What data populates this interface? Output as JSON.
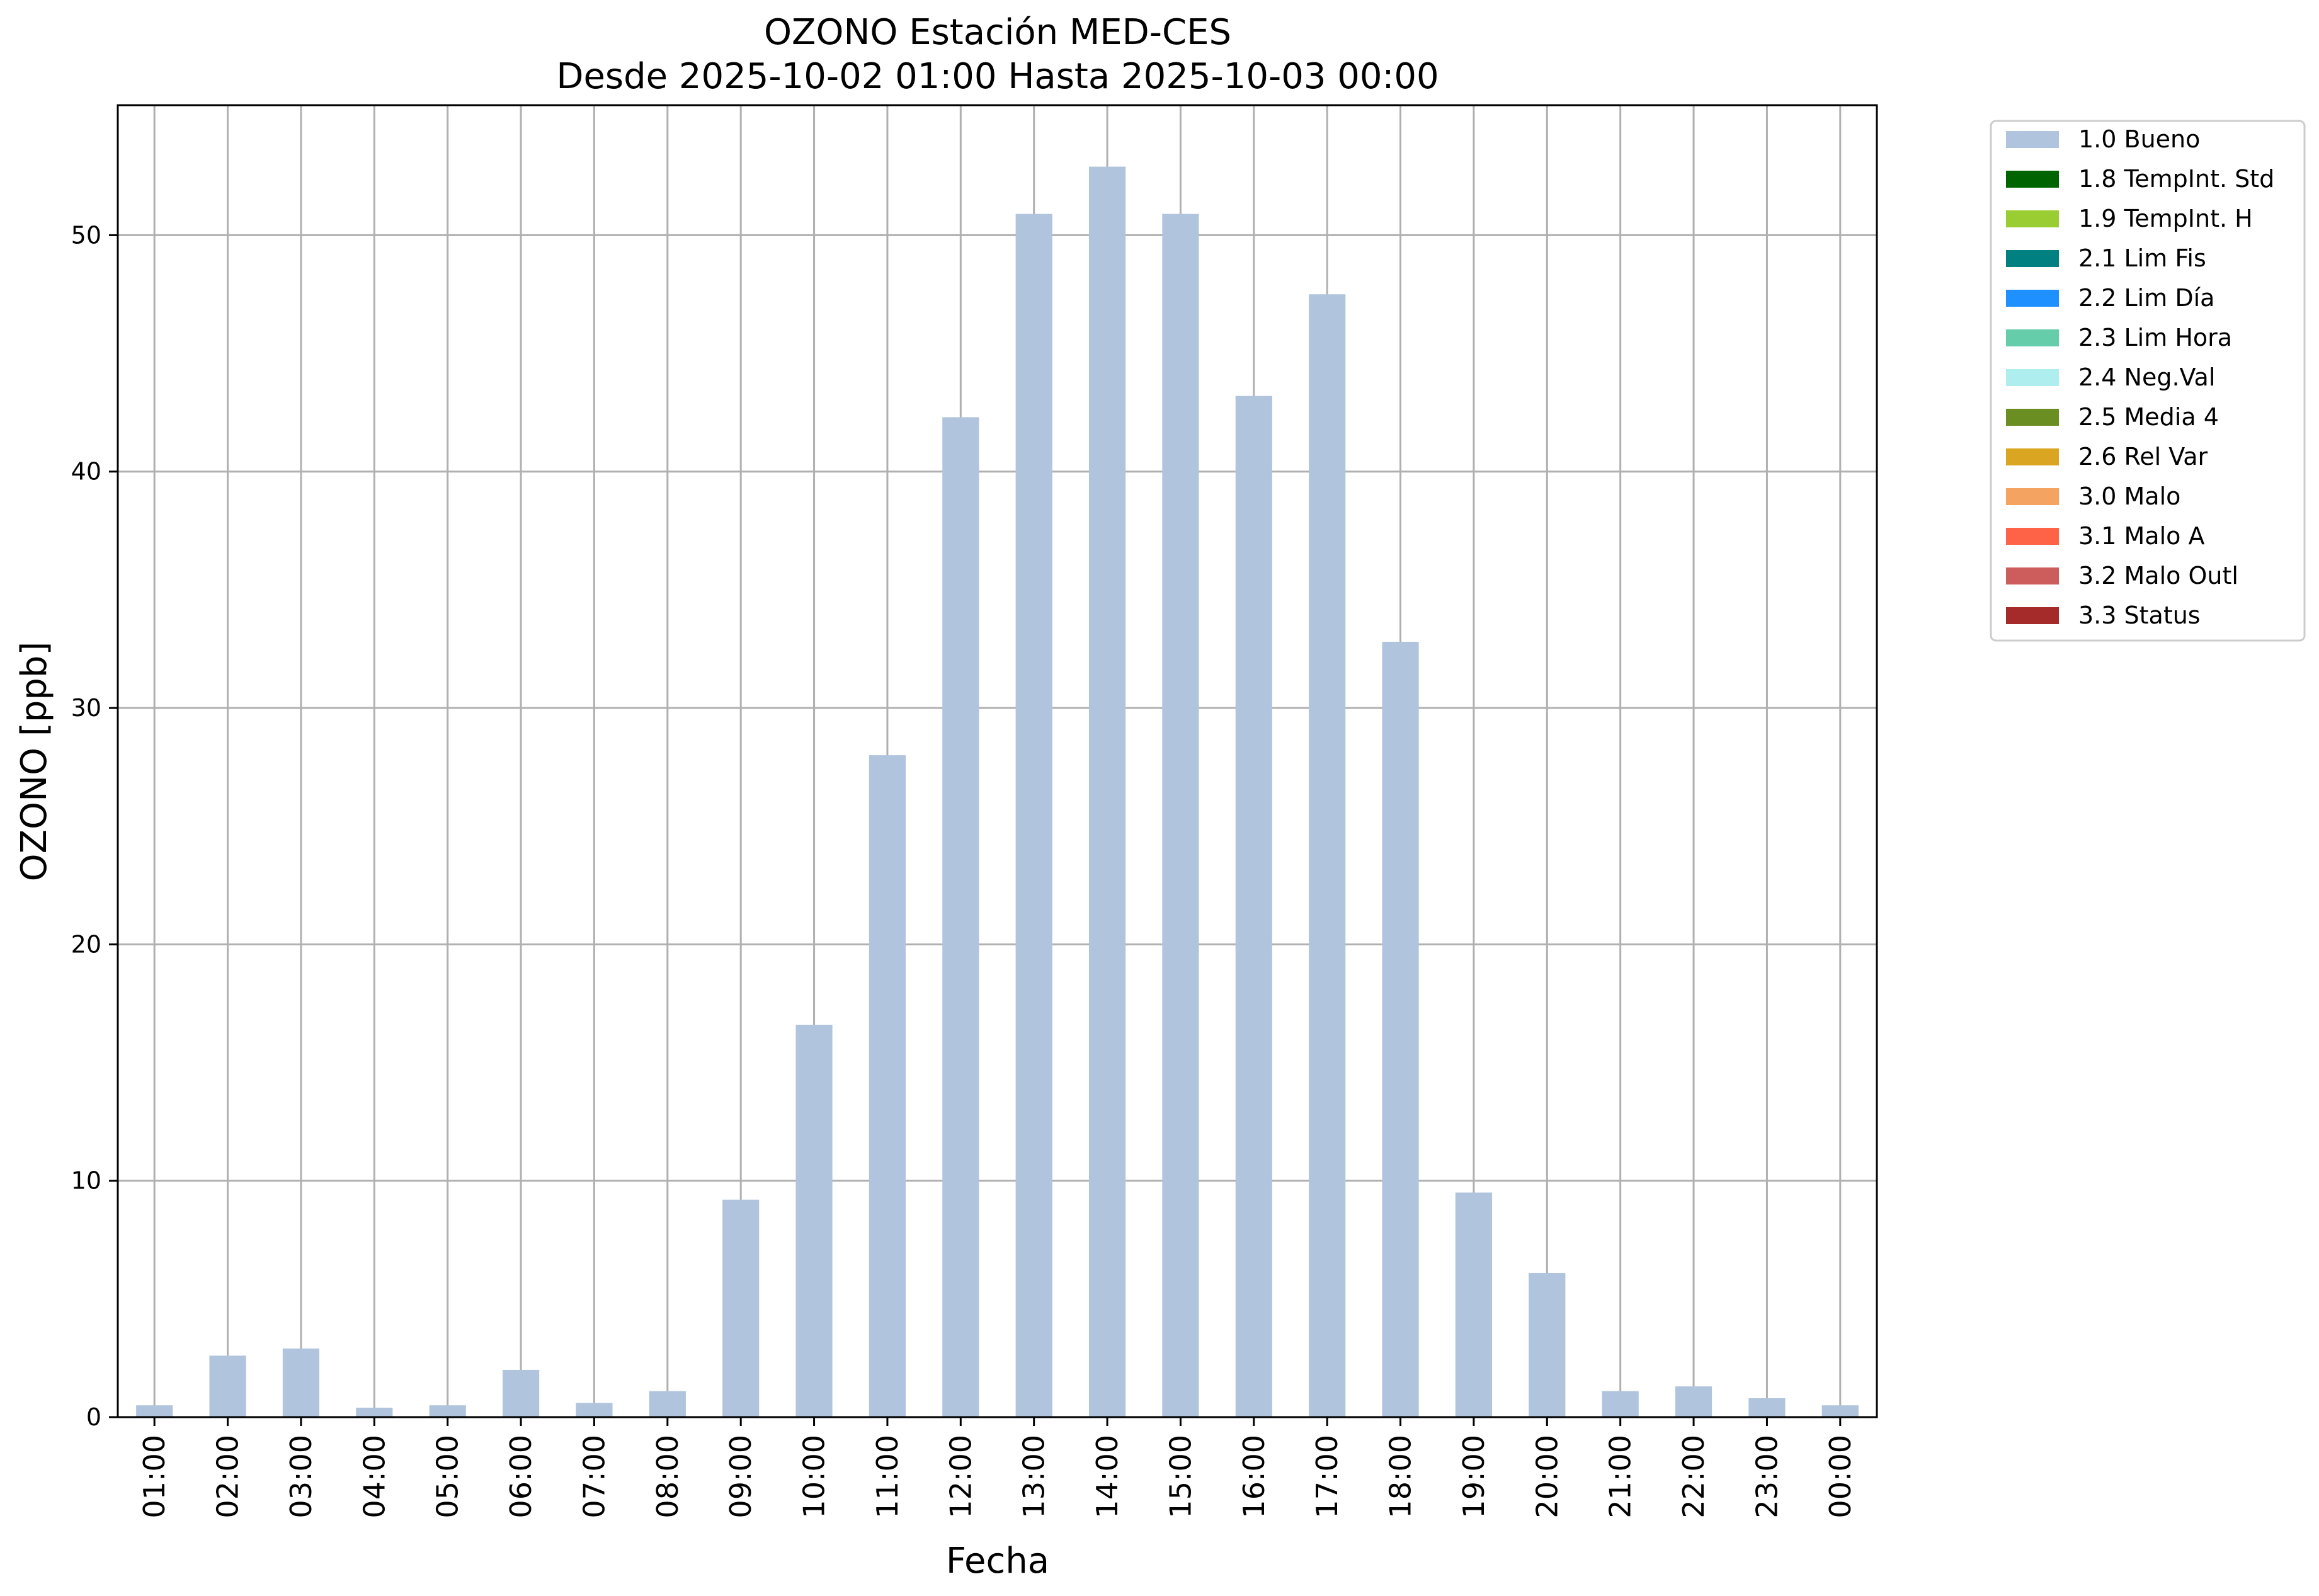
{
  "chart_data": {
    "type": "bar",
    "title": [
      "OZONO Estación MED-CES",
      "Desde 2025-10-02 01:00 Hasta 2025-10-03 00:00"
    ],
    "xlabel": "Fecha",
    "ylabel": "OZONO [ppb]",
    "ylim": [
      0,
      55.5
    ],
    "yticks": [
      0,
      10,
      20,
      30,
      40,
      50
    ],
    "grid": true,
    "legend_position": "outside-top-right",
    "categories": [
      "01:00",
      "02:00",
      "03:00",
      "04:00",
      "05:00",
      "06:00",
      "07:00",
      "08:00",
      "09:00",
      "10:00",
      "11:00",
      "12:00",
      "13:00",
      "14:00",
      "15:00",
      "16:00",
      "17:00",
      "18:00",
      "19:00",
      "20:00",
      "21:00",
      "22:00",
      "23:00",
      "00:00"
    ],
    "series": [
      {
        "name": "1.0 Bueno",
        "color": "#b0c4de",
        "values": [
          0.5,
          2.6,
          2.9,
          0.4,
          0.5,
          2.0,
          0.6,
          1.1,
          9.2,
          16.6,
          28.0,
          42.3,
          50.9,
          52.9,
          50.9,
          43.2,
          47.5,
          32.8,
          9.5,
          6.1,
          1.1,
          1.3,
          0.8,
          0.5
        ]
      }
    ],
    "legend": [
      {
        "label": "1.0 Bueno",
        "color": "#b0c4de"
      },
      {
        "label": "1.8 TempInt. Std",
        "color": "#006400"
      },
      {
        "label": "1.9 TempInt. H",
        "color": "#9acd32"
      },
      {
        "label": "2.1 Lim Fis",
        "color": "#008080"
      },
      {
        "label": "2.2 Lim Día",
        "color": "#1e90ff"
      },
      {
        "label": "2.3 Lim Hora",
        "color": "#66cdaa"
      },
      {
        "label": "2.4 Neg.Val",
        "color": "#afeeee"
      },
      {
        "label": "2.5 Media 4",
        "color": "#6b8e23"
      },
      {
        "label": "2.6 Rel Var",
        "color": "#daa520"
      },
      {
        "label": "3.0 Malo",
        "color": "#f4a460"
      },
      {
        "label": "3.1 Malo A",
        "color": "#ff6347"
      },
      {
        "label": "3.2 Malo Outl",
        "color": "#cd5c5c"
      },
      {
        "label": "3.3 Status",
        "color": "#a52a2a"
      }
    ]
  }
}
